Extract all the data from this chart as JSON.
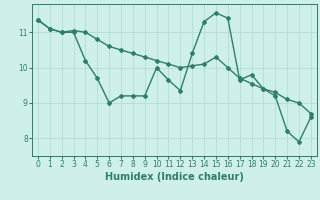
{
  "xlabel": "Humidex (Indice chaleur)",
  "background_color": "#cff0ea",
  "grid_color": "#b0ddd5",
  "line_color": "#2e7d6e",
  "x_values": [
    0,
    1,
    2,
    3,
    4,
    5,
    6,
    7,
    8,
    9,
    10,
    11,
    12,
    13,
    14,
    15,
    16,
    17,
    18,
    19,
    20,
    21,
    22,
    23
  ],
  "line1": [
    11.35,
    11.1,
    11.0,
    11.0,
    10.2,
    9.7,
    9.0,
    9.2,
    9.2,
    9.2,
    10.0,
    9.65,
    9.35,
    10.4,
    11.3,
    11.55,
    11.4,
    9.65,
    9.8,
    9.4,
    9.2,
    8.2,
    7.9,
    8.6
  ],
  "line2": [
    11.35,
    11.1,
    11.0,
    11.05,
    11.0,
    10.8,
    10.6,
    10.5,
    10.4,
    10.3,
    10.2,
    10.1,
    10.0,
    10.05,
    10.1,
    10.3,
    10.0,
    9.7,
    9.55,
    9.4,
    9.3,
    9.1,
    9.0,
    8.7
  ],
  "ylim": [
    7.5,
    11.8
  ],
  "yticks": [
    8,
    9,
    10,
    11
  ],
  "xticks": [
    0,
    1,
    2,
    3,
    4,
    5,
    6,
    7,
    8,
    9,
    10,
    11,
    12,
    13,
    14,
    15,
    16,
    17,
    18,
    19,
    20,
    21,
    22,
    23
  ],
  "marker": "D",
  "marker_size": 2.0,
  "linewidth": 1.0,
  "tick_fontsize": 5.5,
  "label_fontsize": 7.0
}
